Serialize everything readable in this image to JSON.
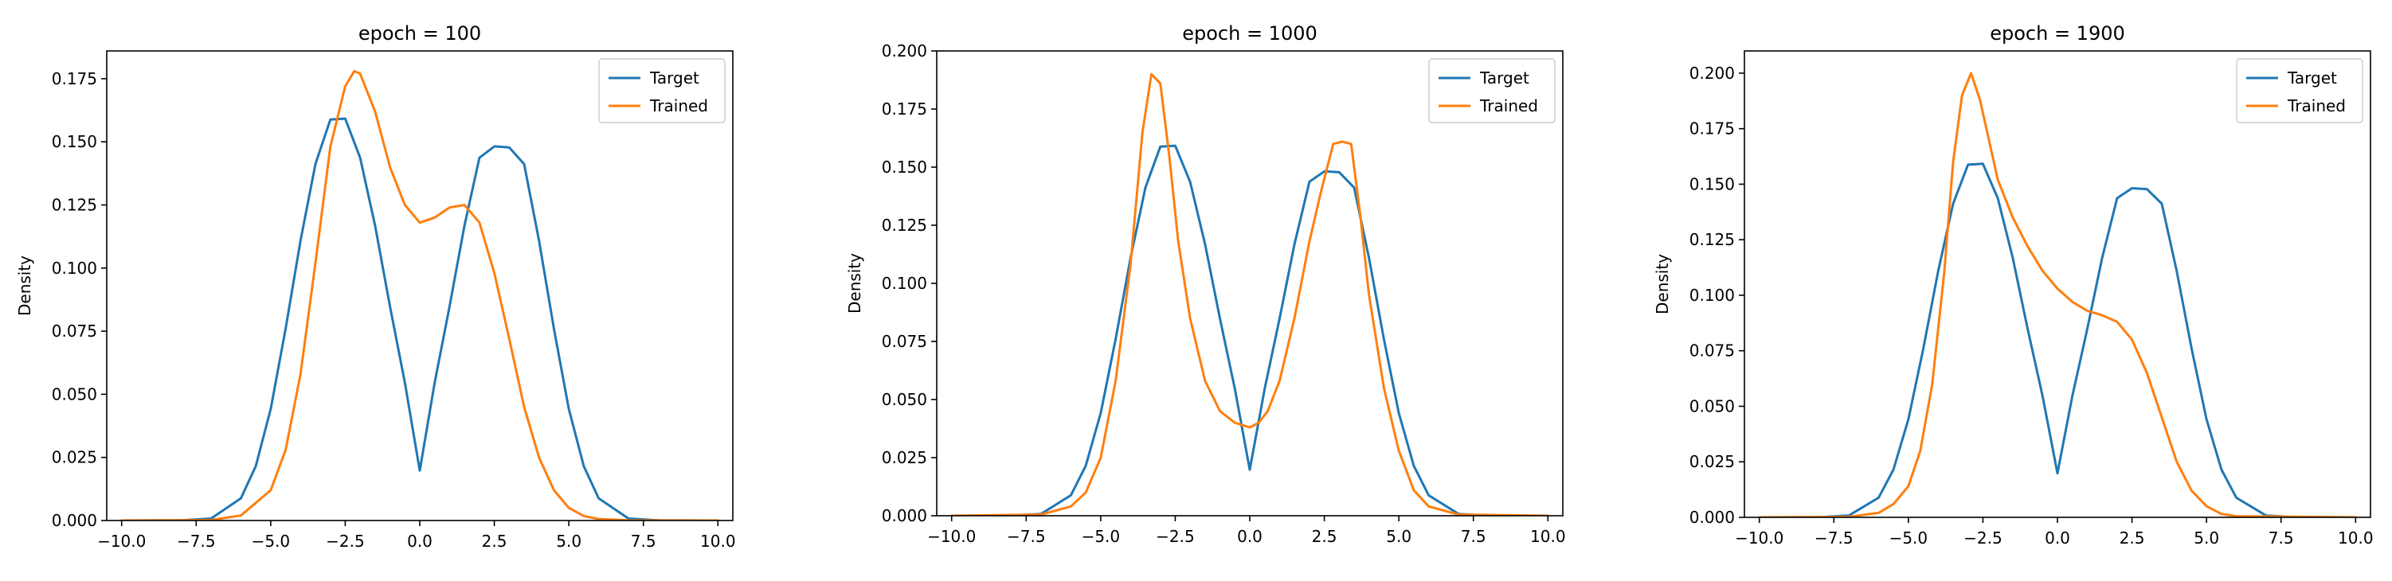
{
  "chart_data": [
    {
      "type": "line",
      "title": "epoch = 100",
      "xlabel": "",
      "ylabel": "Density",
      "xlim": [
        -10.5,
        10.5
      ],
      "ylim": [
        0,
        0.186
      ],
      "xticks": [
        -10.0,
        -7.5,
        -5.0,
        -2.5,
        0.0,
        2.5,
        5.0,
        7.5,
        10.0
      ],
      "xtick_labels": [
        "−10.0",
        "−7.5",
        "−5.0",
        "−2.5",
        "0.0",
        "2.5",
        "5.0",
        "7.5",
        "10.0"
      ],
      "yticks": [
        0,
        0.025,
        0.05,
        0.075,
        0.1,
        0.125,
        0.15,
        0.175
      ],
      "ytick_labels": [
        "0.000",
        "0.025",
        "0.050",
        "0.075",
        "0.100",
        "0.125",
        "0.150",
        "0.175"
      ],
      "grid": false,
      "legend": "top-right",
      "series": [
        {
          "name": "Target",
          "color": "#1f77b4",
          "x": [
            -10,
            -8,
            -7,
            -6,
            -5.5,
            -5,
            -4.5,
            -4,
            -3.5,
            -3,
            -2.5,
            -2,
            -1.5,
            -1,
            -0.5,
            0,
            0.5,
            1,
            1.5,
            2,
            2.5,
            3,
            3.5,
            4,
            4.5,
            5,
            5.5,
            6,
            7,
            8,
            10
          ],
          "y": [
            0,
            0.0001,
            0.0008,
            0.0088,
            0.0215,
            0.0442,
            0.076,
            0.1109,
            0.1412,
            0.1588,
            0.1592,
            0.1437,
            0.1168,
            0.0848,
            0.0546,
            0.0198,
            0.0546,
            0.0848,
            0.1168,
            0.1437,
            0.1482,
            0.1478,
            0.1412,
            0.1109,
            0.076,
            0.0442,
            0.0215,
            0.0088,
            0.0008,
            0.0001,
            0
          ]
        },
        {
          "name": "Trained",
          "color": "#ff7f0e",
          "x": [
            -10,
            -7,
            -6,
            -5,
            -4.5,
            -4,
            -3.5,
            -3,
            -2.5,
            -2.2,
            -2,
            -1.5,
            -1,
            -0.5,
            0,
            0.5,
            1,
            1.5,
            2,
            2.5,
            3,
            3.5,
            4,
            4.5,
            5,
            5.5,
            6,
            7,
            10
          ],
          "y": [
            0,
            0.0002,
            0.002,
            0.012,
            0.028,
            0.058,
            0.102,
            0.148,
            0.172,
            0.178,
            0.177,
            0.162,
            0.14,
            0.125,
            0.118,
            0.12,
            0.124,
            0.125,
            0.118,
            0.098,
            0.072,
            0.045,
            0.025,
            0.012,
            0.005,
            0.0018,
            0.0006,
            0.0001,
            0
          ]
        }
      ]
    },
    {
      "type": "line",
      "title": "epoch = 1000",
      "xlabel": "",
      "ylabel": "Density",
      "xlim": [
        -10.5,
        10.5
      ],
      "ylim": [
        0,
        0.2
      ],
      "xticks": [
        -10.0,
        -7.5,
        -5.0,
        -2.5,
        0.0,
        2.5,
        5.0,
        7.5,
        10.0
      ],
      "xtick_labels": [
        "−10.0",
        "−7.5",
        "−5.0",
        "−2.5",
        "0.0",
        "2.5",
        "5.0",
        "7.5",
        "10.0"
      ],
      "yticks": [
        0,
        0.025,
        0.05,
        0.075,
        0.1,
        0.125,
        0.15,
        0.175,
        0.2
      ],
      "ytick_labels": [
        "0.000",
        "0.025",
        "0.050",
        "0.075",
        "0.100",
        "0.125",
        "0.150",
        "0.175",
        "0.200"
      ],
      "grid": false,
      "legend": "top-right",
      "series": [
        {
          "name": "Target",
          "color": "#1f77b4",
          "x": [
            -10,
            -8,
            -7,
            -6,
            -5.5,
            -5,
            -4.5,
            -4,
            -3.5,
            -3,
            -2.5,
            -2,
            -1.5,
            -1,
            -0.5,
            0,
            0.5,
            1,
            1.5,
            2,
            2.5,
            3,
            3.5,
            4,
            4.5,
            5,
            5.5,
            6,
            7,
            8,
            10
          ],
          "y": [
            0,
            0.0001,
            0.0008,
            0.0088,
            0.0215,
            0.0442,
            0.076,
            0.1109,
            0.1412,
            0.1588,
            0.1592,
            0.1437,
            0.1168,
            0.0848,
            0.0546,
            0.0198,
            0.0546,
            0.0848,
            0.1168,
            0.1437,
            0.1482,
            0.1478,
            0.1412,
            0.1109,
            0.076,
            0.0442,
            0.0215,
            0.0088,
            0.0008,
            0.0001,
            0
          ]
        },
        {
          "name": "Trained",
          "color": "#ff7f0e",
          "x": [
            -10,
            -7,
            -6,
            -5.5,
            -5,
            -4.5,
            -4,
            -3.6,
            -3.3,
            -3,
            -2.7,
            -2.4,
            -2,
            -1.5,
            -1,
            -0.5,
            0,
            0.3,
            0.6,
            1,
            1.5,
            2,
            2.4,
            2.8,
            3.1,
            3.4,
            3.7,
            4,
            4.5,
            5,
            5.5,
            6,
            7,
            10
          ],
          "y": [
            0,
            0.0005,
            0.004,
            0.01,
            0.025,
            0.058,
            0.108,
            0.165,
            0.19,
            0.186,
            0.155,
            0.118,
            0.085,
            0.058,
            0.045,
            0.04,
            0.038,
            0.04,
            0.045,
            0.058,
            0.085,
            0.118,
            0.14,
            0.16,
            0.161,
            0.16,
            0.13,
            0.095,
            0.055,
            0.028,
            0.011,
            0.004,
            0.0005,
            0
          ]
        }
      ]
    },
    {
      "type": "line",
      "title": "epoch = 1900",
      "xlabel": "",
      "ylabel": "Density",
      "xlim": [
        -10.5,
        10.5
      ],
      "ylim": [
        0,
        0.21
      ],
      "xticks": [
        -10.0,
        -7.5,
        -5.0,
        -2.5,
        0.0,
        2.5,
        5.0,
        7.5,
        10.0
      ],
      "xtick_labels": [
        "−10.0",
        "−7.5",
        "−5.0",
        "−2.5",
        "0.0",
        "2.5",
        "5.0",
        "7.5",
        "10.0"
      ],
      "yticks": [
        0,
        0.025,
        0.05,
        0.075,
        0.1,
        0.125,
        0.15,
        0.175,
        0.2
      ],
      "ytick_labels": [
        "0.000",
        "0.025",
        "0.050",
        "0.075",
        "0.100",
        "0.125",
        "0.150",
        "0.175",
        "0.200"
      ],
      "grid": false,
      "legend": "top-right",
      "series": [
        {
          "name": "Target",
          "color": "#1f77b4",
          "x": [
            -10,
            -8,
            -7,
            -6,
            -5.5,
            -5,
            -4.5,
            -4,
            -3.5,
            -3,
            -2.5,
            -2,
            -1.5,
            -1,
            -0.5,
            0,
            0.5,
            1,
            1.5,
            2,
            2.5,
            3,
            3.5,
            4,
            4.5,
            5,
            5.5,
            6,
            7,
            8,
            10
          ],
          "y": [
            0,
            0.0001,
            0.0008,
            0.0088,
            0.0215,
            0.0442,
            0.076,
            0.1109,
            0.1412,
            0.1588,
            0.1592,
            0.1437,
            0.1168,
            0.0848,
            0.0546,
            0.0198,
            0.0546,
            0.0848,
            0.1168,
            0.1437,
            0.1482,
            0.1478,
            0.1412,
            0.1109,
            0.076,
            0.0442,
            0.0215,
            0.0088,
            0.0008,
            0.0001,
            0
          ]
        },
        {
          "name": "Trained",
          "color": "#ff7f0e",
          "x": [
            -10,
            -7,
            -6,
            -5.5,
            -5,
            -4.6,
            -4.2,
            -3.8,
            -3.5,
            -3.2,
            -2.9,
            -2.6,
            -2.3,
            -2,
            -1.5,
            -1,
            -0.5,
            0,
            0.5,
            1,
            1.5,
            2,
            2.5,
            3,
            3.5,
            4,
            4.5,
            5,
            5.5,
            6,
            10
          ],
          "y": [
            0,
            0.0002,
            0.002,
            0.006,
            0.014,
            0.03,
            0.06,
            0.11,
            0.16,
            0.19,
            0.2,
            0.188,
            0.17,
            0.152,
            0.135,
            0.122,
            0.111,
            0.103,
            0.097,
            0.093,
            0.091,
            0.088,
            0.08,
            0.065,
            0.045,
            0.025,
            0.012,
            0.005,
            0.0015,
            0.0005,
            0
          ]
        }
      ]
    }
  ]
}
